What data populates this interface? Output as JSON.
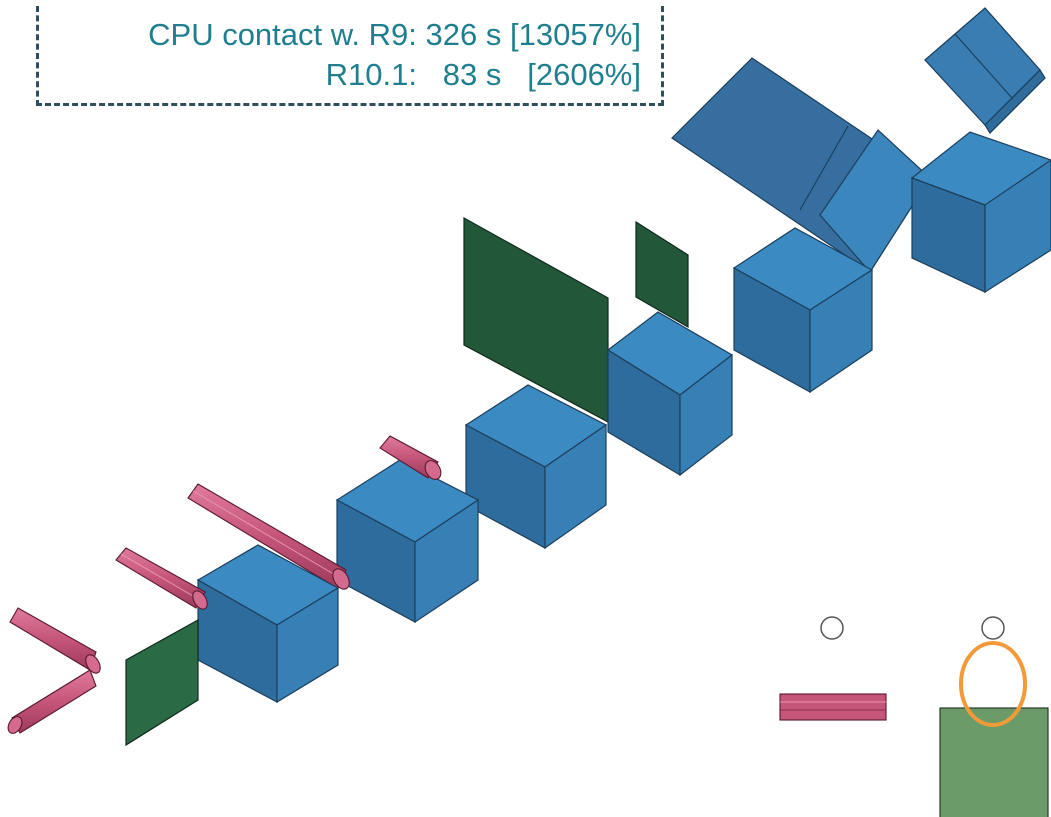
{
  "annotation": {
    "r9_label": "CPU contact w. R9:",
    "r9_time": "326 s",
    "r9_percent": "[13057%]",
    "r10_label": "R10.1:",
    "r10_time": "83 s",
    "r10_percent": "[2606%]"
  },
  "colors": {
    "cube_top": "#3a8cc4",
    "cube_left": "#2d6c9c",
    "cube_right": "#3680b6",
    "plate_dark_green": "#23573a",
    "plate_light_green": "#6a9b68",
    "cylinder": "#c5567a",
    "highlight_ring": "#f29a3a",
    "annotation_text": "#1f7f8f",
    "annotation_border": "#2f4f5f"
  }
}
